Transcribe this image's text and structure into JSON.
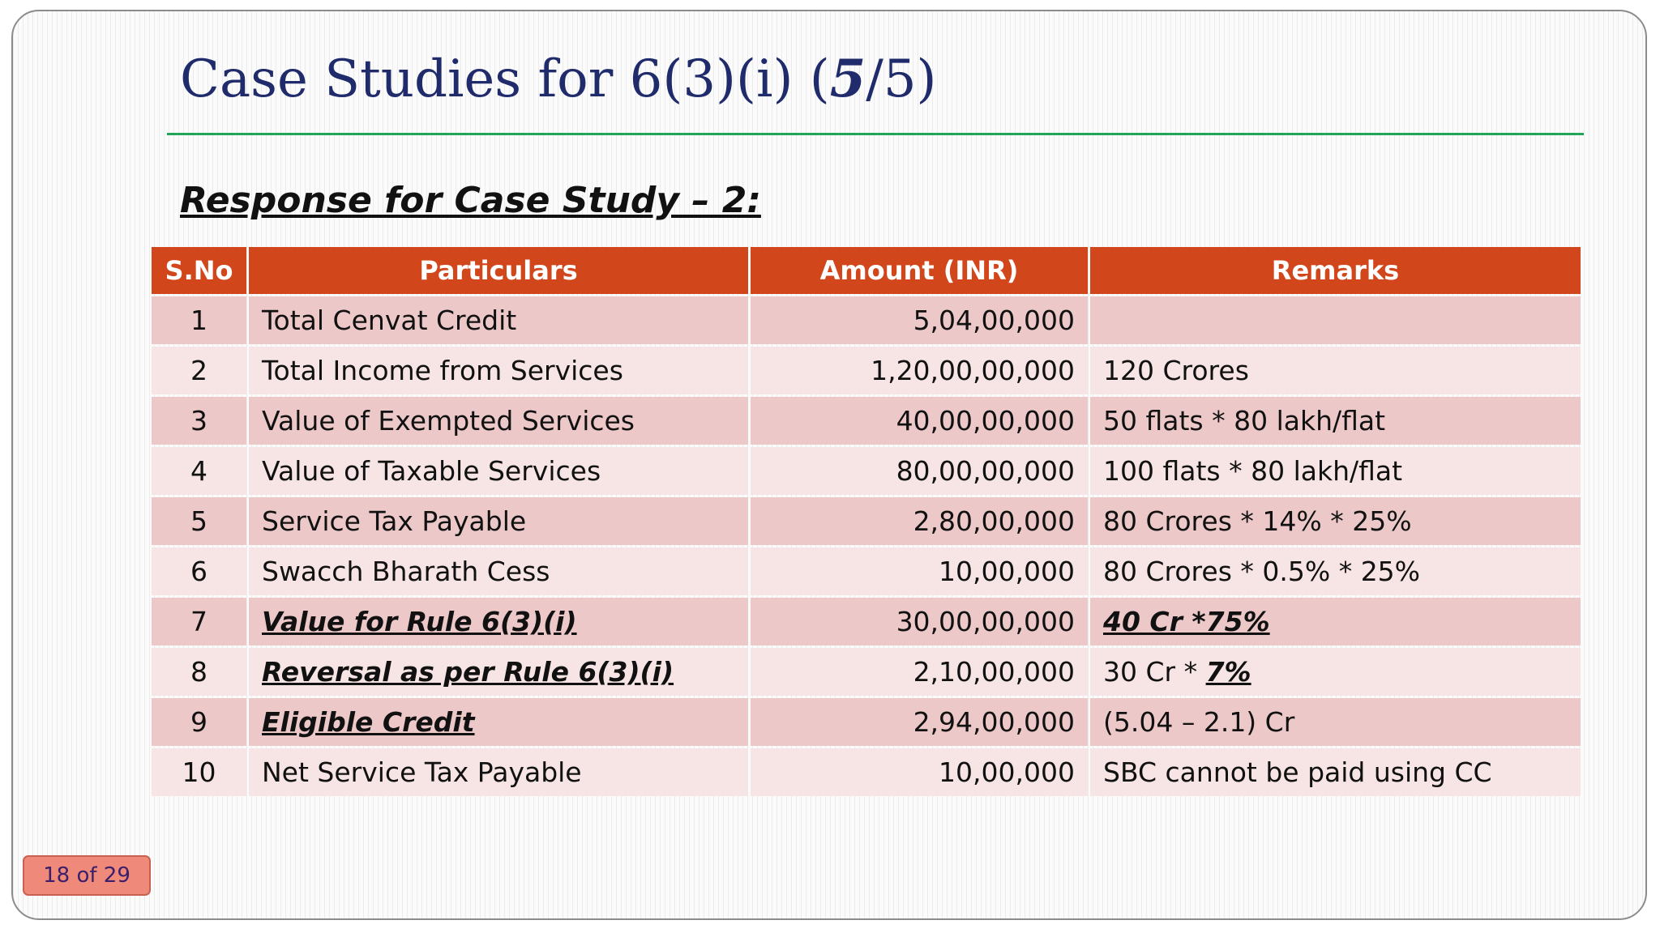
{
  "title": {
    "prefix": "Case Studies for 6(3)(i) (",
    "emph": "5",
    "suffix": "/5)"
  },
  "subtitle": "Response for Case Study – 2:",
  "table": {
    "headers": [
      "S.No",
      "Particulars",
      "Amount (INR)",
      "Remarks"
    ],
    "rows": [
      {
        "sno": "1",
        "particulars": "Total Cenvat Credit",
        "amount": "5,04,00,000",
        "remarks": ""
      },
      {
        "sno": "2",
        "particulars": "Total Income from Services",
        "amount": "1,20,00,00,000",
        "remarks": "120 Crores"
      },
      {
        "sno": "3",
        "particulars": "Value of Exempted Services",
        "amount": "40,00,00,000",
        "remarks": "50 flats * 80 lakh/flat"
      },
      {
        "sno": "4",
        "particulars": "Value of Taxable Services",
        "amount": "80,00,00,000",
        "remarks": "100 flats * 80 lakh/flat"
      },
      {
        "sno": "5",
        "particulars": "Service Tax Payable",
        "amount": "2,80,00,000",
        "remarks": "80 Crores * 14% * 25%"
      },
      {
        "sno": "6",
        "particulars": "Swacch Bharath Cess",
        "amount": "10,00,000",
        "remarks": "80 Crores * 0.5% * 25%"
      },
      {
        "sno": "7",
        "particulars": "Value for Rule 6(3)(i)",
        "amount": "30,00,00,000",
        "remarks": "40 Cr *75%"
      },
      {
        "sno": "8",
        "particulars": "Reversal as per Rule 6(3)(i)",
        "amount": "2,10,00,000",
        "remarks_prefix": "30 Cr * ",
        "remarks_emph": "7%"
      },
      {
        "sno": "9",
        "particulars": "Eligible Credit",
        "amount": "2,94,00,000",
        "remarks": "(5.04 – 2.1) Cr"
      },
      {
        "sno": "10",
        "particulars": "Net Service Tax Payable",
        "amount": "10,00,000",
        "remarks": "SBC cannot be paid using CC"
      }
    ]
  },
  "page_indicator": "18 of 29",
  "colors": {
    "title": "#1f2b6b",
    "rule": "#1fa65a",
    "header": "#d2461c",
    "row_odd": "#ecc9c8",
    "row_even": "#f6e5e4",
    "badge": "#ef8a7a"
  }
}
